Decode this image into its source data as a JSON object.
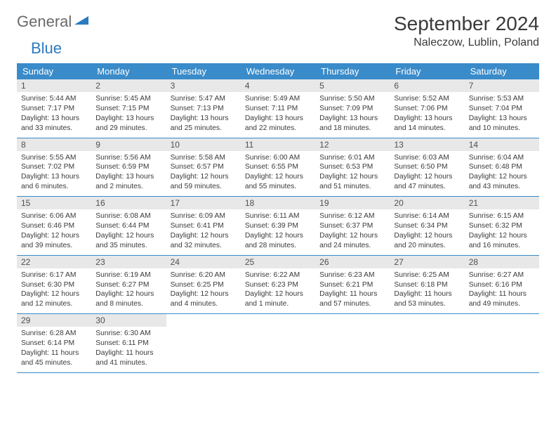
{
  "logo": {
    "general": "General",
    "blue": "Blue"
  },
  "title": "September 2024",
  "location": "Naleczow, Lublin, Poland",
  "colors": {
    "header_bg": "#3a8bc9",
    "header_text": "#ffffff",
    "daynum_bg": "#e8e8e8",
    "border": "#3a8bc9",
    "text": "#3a3a3a",
    "logo_gray": "#6a6a6a",
    "logo_blue": "#2b7bbf"
  },
  "dow": [
    "Sunday",
    "Monday",
    "Tuesday",
    "Wednesday",
    "Thursday",
    "Friday",
    "Saturday"
  ],
  "weeks": [
    [
      {
        "n": "1",
        "sr": "Sunrise: 5:44 AM",
        "ss": "Sunset: 7:17 PM",
        "d1": "Daylight: 13 hours",
        "d2": "and 33 minutes."
      },
      {
        "n": "2",
        "sr": "Sunrise: 5:45 AM",
        "ss": "Sunset: 7:15 PM",
        "d1": "Daylight: 13 hours",
        "d2": "and 29 minutes."
      },
      {
        "n": "3",
        "sr": "Sunrise: 5:47 AM",
        "ss": "Sunset: 7:13 PM",
        "d1": "Daylight: 13 hours",
        "d2": "and 25 minutes."
      },
      {
        "n": "4",
        "sr": "Sunrise: 5:49 AM",
        "ss": "Sunset: 7:11 PM",
        "d1": "Daylight: 13 hours",
        "d2": "and 22 minutes."
      },
      {
        "n": "5",
        "sr": "Sunrise: 5:50 AM",
        "ss": "Sunset: 7:09 PM",
        "d1": "Daylight: 13 hours",
        "d2": "and 18 minutes."
      },
      {
        "n": "6",
        "sr": "Sunrise: 5:52 AM",
        "ss": "Sunset: 7:06 PM",
        "d1": "Daylight: 13 hours",
        "d2": "and 14 minutes."
      },
      {
        "n": "7",
        "sr": "Sunrise: 5:53 AM",
        "ss": "Sunset: 7:04 PM",
        "d1": "Daylight: 13 hours",
        "d2": "and 10 minutes."
      }
    ],
    [
      {
        "n": "8",
        "sr": "Sunrise: 5:55 AM",
        "ss": "Sunset: 7:02 PM",
        "d1": "Daylight: 13 hours",
        "d2": "and 6 minutes."
      },
      {
        "n": "9",
        "sr": "Sunrise: 5:56 AM",
        "ss": "Sunset: 6:59 PM",
        "d1": "Daylight: 13 hours",
        "d2": "and 2 minutes."
      },
      {
        "n": "10",
        "sr": "Sunrise: 5:58 AM",
        "ss": "Sunset: 6:57 PM",
        "d1": "Daylight: 12 hours",
        "d2": "and 59 minutes."
      },
      {
        "n": "11",
        "sr": "Sunrise: 6:00 AM",
        "ss": "Sunset: 6:55 PM",
        "d1": "Daylight: 12 hours",
        "d2": "and 55 minutes."
      },
      {
        "n": "12",
        "sr": "Sunrise: 6:01 AM",
        "ss": "Sunset: 6:53 PM",
        "d1": "Daylight: 12 hours",
        "d2": "and 51 minutes."
      },
      {
        "n": "13",
        "sr": "Sunrise: 6:03 AM",
        "ss": "Sunset: 6:50 PM",
        "d1": "Daylight: 12 hours",
        "d2": "and 47 minutes."
      },
      {
        "n": "14",
        "sr": "Sunrise: 6:04 AM",
        "ss": "Sunset: 6:48 PM",
        "d1": "Daylight: 12 hours",
        "d2": "and 43 minutes."
      }
    ],
    [
      {
        "n": "15",
        "sr": "Sunrise: 6:06 AM",
        "ss": "Sunset: 6:46 PM",
        "d1": "Daylight: 12 hours",
        "d2": "and 39 minutes."
      },
      {
        "n": "16",
        "sr": "Sunrise: 6:08 AM",
        "ss": "Sunset: 6:44 PM",
        "d1": "Daylight: 12 hours",
        "d2": "and 35 minutes."
      },
      {
        "n": "17",
        "sr": "Sunrise: 6:09 AM",
        "ss": "Sunset: 6:41 PM",
        "d1": "Daylight: 12 hours",
        "d2": "and 32 minutes."
      },
      {
        "n": "18",
        "sr": "Sunrise: 6:11 AM",
        "ss": "Sunset: 6:39 PM",
        "d1": "Daylight: 12 hours",
        "d2": "and 28 minutes."
      },
      {
        "n": "19",
        "sr": "Sunrise: 6:12 AM",
        "ss": "Sunset: 6:37 PM",
        "d1": "Daylight: 12 hours",
        "d2": "and 24 minutes."
      },
      {
        "n": "20",
        "sr": "Sunrise: 6:14 AM",
        "ss": "Sunset: 6:34 PM",
        "d1": "Daylight: 12 hours",
        "d2": "and 20 minutes."
      },
      {
        "n": "21",
        "sr": "Sunrise: 6:15 AM",
        "ss": "Sunset: 6:32 PM",
        "d1": "Daylight: 12 hours",
        "d2": "and 16 minutes."
      }
    ],
    [
      {
        "n": "22",
        "sr": "Sunrise: 6:17 AM",
        "ss": "Sunset: 6:30 PM",
        "d1": "Daylight: 12 hours",
        "d2": "and 12 minutes."
      },
      {
        "n": "23",
        "sr": "Sunrise: 6:19 AM",
        "ss": "Sunset: 6:27 PM",
        "d1": "Daylight: 12 hours",
        "d2": "and 8 minutes."
      },
      {
        "n": "24",
        "sr": "Sunrise: 6:20 AM",
        "ss": "Sunset: 6:25 PM",
        "d1": "Daylight: 12 hours",
        "d2": "and 4 minutes."
      },
      {
        "n": "25",
        "sr": "Sunrise: 6:22 AM",
        "ss": "Sunset: 6:23 PM",
        "d1": "Daylight: 12 hours",
        "d2": "and 1 minute."
      },
      {
        "n": "26",
        "sr": "Sunrise: 6:23 AM",
        "ss": "Sunset: 6:21 PM",
        "d1": "Daylight: 11 hours",
        "d2": "and 57 minutes."
      },
      {
        "n": "27",
        "sr": "Sunrise: 6:25 AM",
        "ss": "Sunset: 6:18 PM",
        "d1": "Daylight: 11 hours",
        "d2": "and 53 minutes."
      },
      {
        "n": "28",
        "sr": "Sunrise: 6:27 AM",
        "ss": "Sunset: 6:16 PM",
        "d1": "Daylight: 11 hours",
        "d2": "and 49 minutes."
      }
    ],
    [
      {
        "n": "29",
        "sr": "Sunrise: 6:28 AM",
        "ss": "Sunset: 6:14 PM",
        "d1": "Daylight: 11 hours",
        "d2": "and 45 minutes."
      },
      {
        "n": "30",
        "sr": "Sunrise: 6:30 AM",
        "ss": "Sunset: 6:11 PM",
        "d1": "Daylight: 11 hours",
        "d2": "and 41 minutes."
      },
      null,
      null,
      null,
      null,
      null
    ]
  ]
}
